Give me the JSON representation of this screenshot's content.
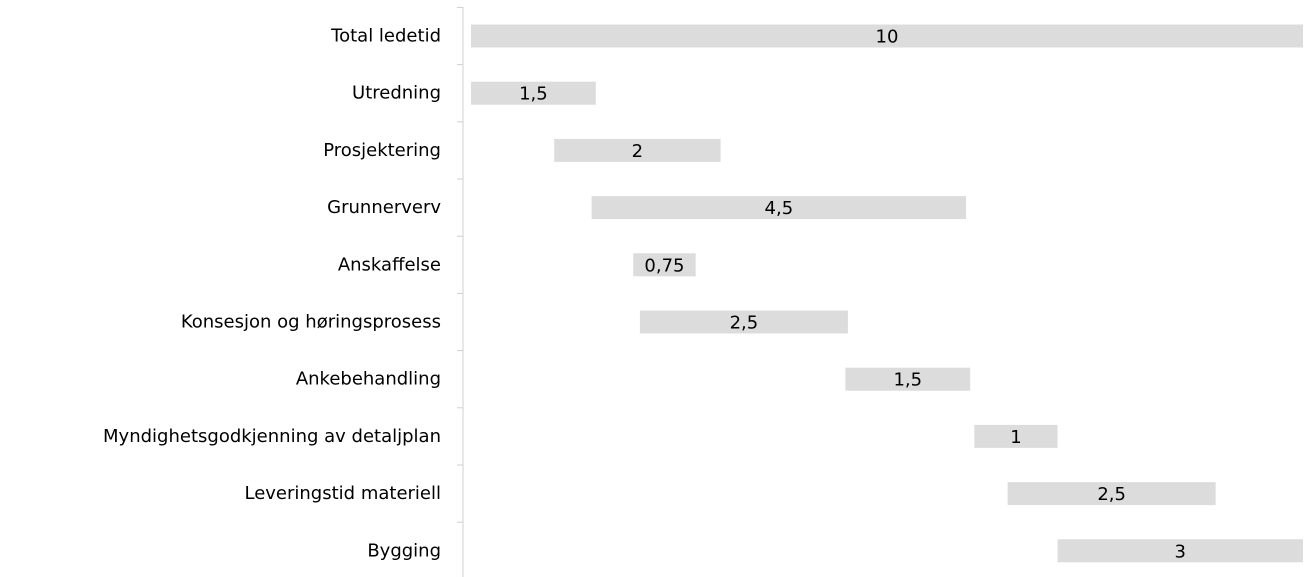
{
  "chart_data": {
    "type": "bar",
    "orientation": "horizontal",
    "subtype": "floating-bar (gantt)",
    "title": "",
    "xlabel": "",
    "ylabel": "",
    "categories": [
      "Total ledetid",
      "Utredning",
      "Prosjektering",
      "Grunnerverv",
      "Anskaffelse",
      "Konsesjon og høringsprosess",
      "Ankebehandling",
      "Myndighetsgodkjenning av detaljplan",
      "Leveringstid materiell",
      "Bygging"
    ],
    "series": [
      {
        "starts": [
          0,
          0,
          1,
          1.45,
          1.95,
          2.03,
          4.5,
          6.05,
          6.45,
          7.05
        ],
        "values": [
          10,
          1.5,
          2,
          4.5,
          0.75,
          2.5,
          1.5,
          1,
          2.5,
          3
        ],
        "labels": [
          "10",
          "1,5",
          "2",
          "4,5",
          "0,75",
          "2,5",
          "1,5",
          "1",
          "2,5",
          "3"
        ]
      }
    ],
    "xlim": [
      0,
      10
    ],
    "grid": false,
    "legend": "none",
    "colors": {
      "bar": "#dcdcdc",
      "axis": "#d0d0d0",
      "text": "#000000"
    }
  }
}
